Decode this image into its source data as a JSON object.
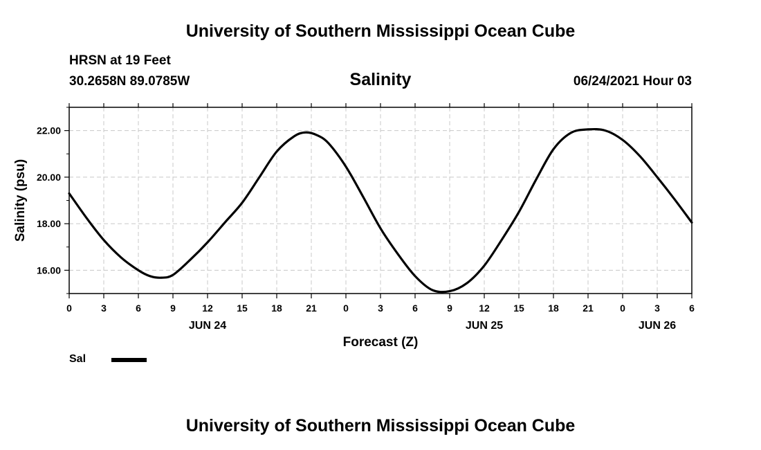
{
  "header": {
    "title": "University of Southern Mississippi Ocean Cube",
    "station": "HRSN at 19 Feet",
    "coordinates": "30.2658N  89.0785W",
    "datetime": "06/24/2021 Hour 03"
  },
  "footer": {
    "title": "University of Southern Mississippi Ocean Cube"
  },
  "legend": {
    "label": "Sal",
    "color": "#000000"
  },
  "chart_data": {
    "type": "line",
    "title": "Salinity",
    "xlabel": "Forecast (Z)",
    "ylabel": "Salinity (psu)",
    "xlim": [
      0,
      54
    ],
    "ylim": [
      15.0,
      23.0
    ],
    "x_ticks": [
      0,
      3,
      6,
      9,
      12,
      15,
      18,
      21,
      24,
      27,
      30,
      33,
      36,
      39,
      42,
      45,
      48,
      51,
      54
    ],
    "x_tick_labels": [
      "0",
      "3",
      "6",
      "9",
      "12",
      "15",
      "18",
      "21",
      "0",
      "3",
      "6",
      "9",
      "12",
      "15",
      "18",
      "21",
      "0",
      "3",
      "6"
    ],
    "y_ticks": [
      16,
      18,
      20,
      22
    ],
    "y_tick_labels": [
      "16.00",
      "18.00",
      "20.00",
      "22.00"
    ],
    "day_labels": [
      {
        "x": 12,
        "label": "JUN 24"
      },
      {
        "x": 36,
        "label": "JUN 25"
      },
      {
        "x": 51,
        "label": "JUN 26"
      }
    ],
    "grid": true,
    "series": [
      {
        "name": "Sal",
        "color": "#000000",
        "x": [
          0,
          1.5,
          3,
          4.5,
          6,
          7,
          8,
          9,
          10.5,
          12,
          13.5,
          15,
          16.5,
          18,
          19.5,
          20.5,
          21.5,
          22.5,
          24,
          25.5,
          27,
          28.5,
          30,
          31.5,
          33,
          34.5,
          36,
          37.5,
          39,
          40.5,
          42,
          43.5,
          45,
          46.5,
          48,
          49.5,
          51,
          52.5,
          54
        ],
        "y": [
          19.3,
          18.25,
          17.3,
          16.55,
          16.0,
          15.75,
          15.68,
          15.8,
          16.45,
          17.2,
          18.05,
          18.9,
          20.0,
          21.1,
          21.75,
          21.92,
          21.8,
          21.45,
          20.45,
          19.15,
          17.8,
          16.7,
          15.75,
          15.15,
          15.1,
          15.45,
          16.2,
          17.3,
          18.5,
          19.9,
          21.2,
          21.9,
          22.05,
          22.0,
          21.6,
          20.9,
          20.0,
          19.05,
          18.05
        ]
      }
    ]
  }
}
